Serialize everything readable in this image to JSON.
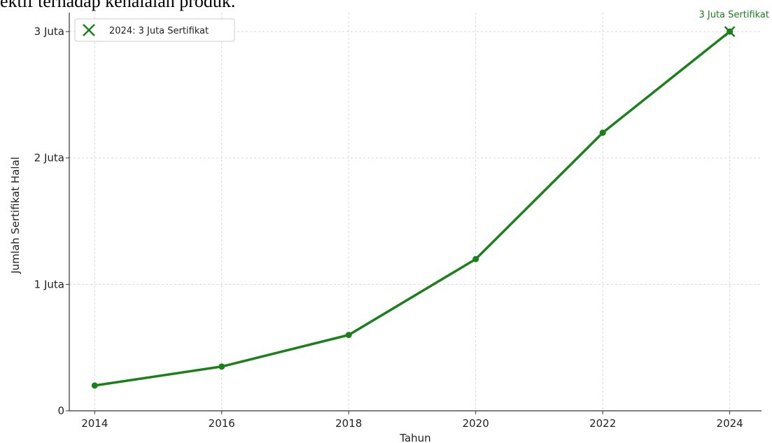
{
  "top_text": "ektif terhadap kehalalan produk.",
  "chart_data": {
    "type": "line",
    "title": "",
    "xlabel": "Tahun",
    "ylabel": "Jumlah Sertifikat Halal",
    "x": [
      2014,
      2016,
      2018,
      2020,
      2022,
      2024
    ],
    "series": [
      {
        "values": [
          200000,
          350000,
          600000,
          1200000,
          2200000,
          3000000
        ],
        "color": "#1a801a"
      }
    ],
    "xlim": [
      2013.6,
      2024.5
    ],
    "ylim": [
      0,
      3150000
    ],
    "x_ticks": [
      2014,
      2016,
      2018,
      2020,
      2022,
      2024
    ],
    "y_ticks": [
      {
        "value": 0,
        "label": "0"
      },
      {
        "value": 1000000,
        "label": "1 Juta"
      },
      {
        "value": 2000000,
        "label": "2 Juta"
      },
      {
        "value": 3000000,
        "label": "3 Juta"
      }
    ],
    "grid": true,
    "highlight": {
      "x": 2024,
      "y": 3000000,
      "marker": "x",
      "annotation": "3 Juta Sertifikat"
    },
    "legend": {
      "position": "top-left",
      "entries": [
        {
          "label": "2024: 3 Juta Sertifikat",
          "marker": "x",
          "color": "#1a801a"
        }
      ]
    }
  }
}
